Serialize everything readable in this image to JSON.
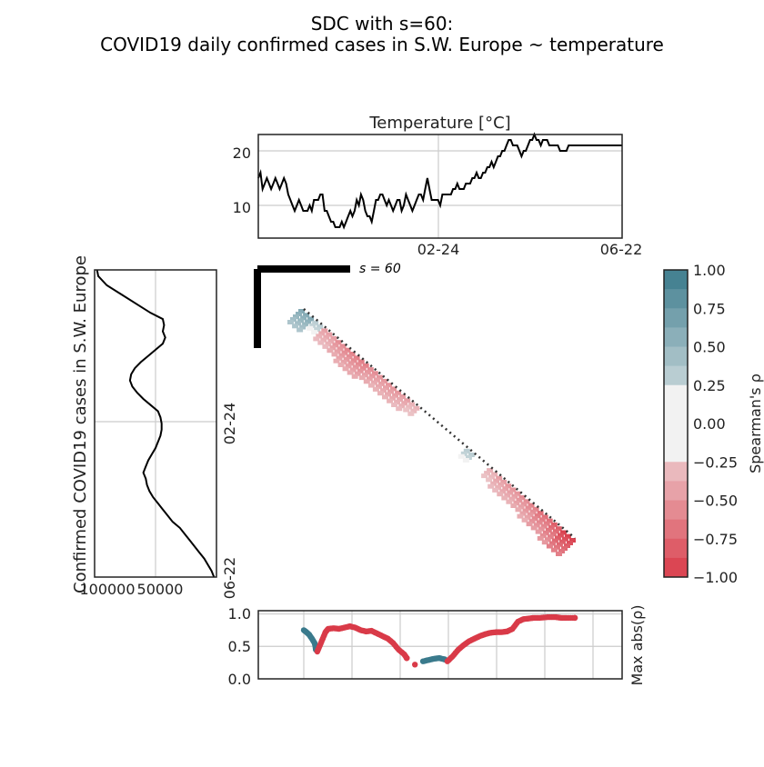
{
  "title_line1": "SDC with s=60:",
  "title_line2": "COVID19 daily confirmed cases in S.W. Europe ~ temperature",
  "colors": {
    "line": "#000000",
    "grid": "#cccccc",
    "positive": "#3a7a8c",
    "negative": "#d93a48",
    "neutral": "#f2f2f2",
    "diagonal": "#333333"
  },
  "chart_data": [
    {
      "type": "line",
      "title": "Temperature [°C]",
      "x_tick_labels": [
        "02-24",
        "06-22"
      ],
      "y_ticks": [
        10,
        20
      ],
      "ylim": [
        4,
        23
      ],
      "grid": true,
      "series": [
        {
          "x_day_index": [
            0,
            2,
            4,
            6,
            8,
            10,
            12,
            14,
            16,
            18,
            20,
            22,
            24,
            26,
            28,
            30,
            32,
            34,
            36,
            38,
            40,
            42,
            44,
            46,
            48,
            50,
            52,
            54,
            56,
            58,
            60,
            62,
            64,
            66,
            68,
            70,
            72,
            74,
            76,
            78,
            80,
            82,
            84,
            86,
            88,
            90,
            92,
            94,
            96,
            98,
            100,
            102,
            104,
            106,
            108,
            110,
            112,
            114,
            116,
            118,
            120,
            122,
            124,
            126,
            128,
            130,
            132,
            134,
            136,
            138,
            140,
            142,
            144,
            146,
            148,
            150,
            152,
            154,
            156,
            158,
            160,
            162,
            164,
            166,
            168,
            170,
            172,
            174,
            176,
            178,
            180,
            182,
            184,
            186,
            188,
            190,
            192,
            194,
            196,
            198,
            200,
            202,
            204,
            206,
            208,
            210,
            212,
            214,
            216,
            218,
            220,
            222,
            224,
            226,
            228,
            230,
            232,
            234,
            236,
            238,
            240,
            242,
            244,
            246,
            248,
            250,
            252,
            254,
            256,
            258,
            260,
            262,
            264,
            266,
            268,
            270,
            272,
            274,
            276,
            278,
            280,
            282,
            284,
            286,
            288,
            290,
            292,
            294,
            296,
            298,
            300,
            302,
            304,
            306,
            308,
            310,
            312,
            314,
            316,
            318,
            320,
            322,
            324,
            326,
            328,
            330,
            332,
            334,
            336,
            338,
            340
          ],
          "values": [
            15,
            16,
            13,
            14,
            15,
            14,
            13,
            14,
            15,
            14,
            13,
            14,
            15,
            14,
            12,
            11,
            10,
            9,
            10,
            11,
            10,
            9,
            9,
            9,
            10,
            9,
            11,
            11,
            11,
            12,
            12,
            9,
            9,
            8,
            7,
            7,
            6,
            6,
            6,
            7,
            6,
            7,
            8,
            9,
            8,
            9,
            11,
            10,
            12,
            11,
            9,
            8,
            8,
            7,
            9,
            11,
            11,
            12,
            12,
            11,
            10,
            11,
            10,
            9,
            10,
            11,
            11,
            9,
            10,
            12,
            11,
            10,
            9,
            10,
            11,
            12,
            12,
            11,
            13,
            15,
            13,
            11,
            11,
            11,
            11,
            10,
            12,
            12,
            12,
            12,
            12,
            13,
            13,
            14,
            13,
            13,
            13,
            14,
            14,
            14,
            15,
            15,
            16,
            15,
            15,
            16,
            16,
            17,
            17,
            18,
            17,
            18,
            19,
            19,
            20,
            20,
            21,
            22,
            22,
            21,
            21,
            21,
            20,
            19,
            20,
            20,
            21,
            22,
            22,
            23,
            22,
            22,
            21,
            22,
            22,
            22,
            21,
            21,
            21,
            21,
            21,
            20,
            20,
            20,
            20,
            21,
            21,
            21,
            21,
            21,
            21,
            21,
            21,
            21,
            21,
            21,
            21,
            21,
            21,
            21,
            21,
            21,
            21,
            21,
            21,
            21,
            21,
            21,
            21,
            21,
            21
          ]
        }
      ]
    },
    {
      "type": "line",
      "orientation": "vertical",
      "ylabel": "Confirmed COVID19 cases in S.W. Europe",
      "x_tick_labels": [
        "100000",
        "50000"
      ],
      "y_tick_labels": [
        "02-24",
        "06-22"
      ],
      "xlim_reversed": [
        100000,
        0
      ],
      "grid": true,
      "series": [
        {
          "t_fraction": [
            0.0,
            0.02,
            0.05,
            0.08,
            0.11,
            0.14,
            0.16,
            0.18,
            0.2,
            0.22,
            0.24,
            0.26,
            0.28,
            0.3,
            0.32,
            0.34,
            0.36,
            0.38,
            0.4,
            0.42,
            0.44,
            0.46,
            0.48,
            0.5,
            0.52,
            0.54,
            0.56,
            0.58,
            0.6,
            0.62,
            0.64,
            0.66,
            0.68,
            0.7,
            0.72,
            0.74,
            0.76,
            0.78,
            0.8,
            0.82,
            0.84,
            0.86,
            0.88,
            0.9,
            0.92,
            0.94,
            0.96,
            0.98,
            1.0
          ],
          "values": [
            98000,
            97000,
            90000,
            78000,
            66000,
            54000,
            44000,
            43000,
            44000,
            42000,
            44000,
            50000,
            56000,
            62000,
            67000,
            70000,
            71000,
            69000,
            65000,
            60000,
            54000,
            48000,
            46000,
            45000,
            45000,
            46000,
            48000,
            50000,
            53000,
            56000,
            58000,
            60000,
            58000,
            57000,
            55000,
            52000,
            48000,
            44000,
            40000,
            36000,
            30000,
            26000,
            22000,
            18000,
            14000,
            10000,
            7000,
            4000,
            2000
          ]
        }
      ]
    },
    {
      "type": "heatmap",
      "annotation": "s = 60",
      "colorbar_label": "Spearman's ρ",
      "colorbar_ticks": [
        "1.00",
        "0.75",
        "0.50",
        "0.25",
        "0.00",
        "−0.25",
        "−0.50",
        "−0.75",
        "−1.00"
      ],
      "band_start_fraction": [
        0.0,
        0.04,
        0.08,
        0.12,
        0.16,
        0.2,
        0.24,
        0.28,
        0.32,
        0.36,
        0.4,
        0.44,
        0.48,
        0.52,
        0.56,
        0.6,
        0.64,
        0.68,
        0.72,
        0.76,
        0.8,
        0.84,
        0.88,
        0.92,
        0.96,
        1.0
      ],
      "band_rho": [
        0.6,
        0.3,
        -0.45,
        -0.55,
        -0.6,
        -0.62,
        -0.55,
        -0.5,
        -0.5,
        -0.45,
        -0.35,
        0.0,
        0.0,
        0.0,
        0.2,
        0.3,
        -0.2,
        -0.35,
        -0.45,
        -0.5,
        -0.55,
        -0.6,
        -0.7,
        -0.8,
        -0.95,
        -0.95
      ]
    },
    {
      "type": "scatter",
      "ylabel": "Max abs(ρ)",
      "y_ticks": [
        "0.0",
        "0.5",
        "1.0"
      ],
      "ylim": [
        0,
        1.05
      ],
      "grid": true,
      "segments": [
        {
          "sign": "positive",
          "points": [
            [
              0.0,
              0.75
            ],
            [
              0.01,
              0.72
            ],
            [
              0.02,
              0.68
            ],
            [
              0.03,
              0.62
            ],
            [
              0.04,
              0.55
            ],
            [
              0.045,
              0.45
            ]
          ]
        },
        {
          "sign": "negative",
          "points": [
            [
              0.05,
              0.42
            ],
            [
              0.06,
              0.52
            ],
            [
              0.07,
              0.62
            ],
            [
              0.08,
              0.72
            ],
            [
              0.09,
              0.77
            ],
            [
              0.11,
              0.78
            ],
            [
              0.13,
              0.77
            ],
            [
              0.15,
              0.79
            ],
            [
              0.17,
              0.81
            ],
            [
              0.19,
              0.79
            ],
            [
              0.21,
              0.75
            ],
            [
              0.23,
              0.73
            ],
            [
              0.25,
              0.74
            ],
            [
              0.27,
              0.7
            ],
            [
              0.29,
              0.66
            ],
            [
              0.31,
              0.62
            ],
            [
              0.33,
              0.55
            ],
            [
              0.35,
              0.45
            ],
            [
              0.37,
              0.38
            ],
            [
              0.38,
              0.32
            ]
          ]
        },
        {
          "sign": "negative",
          "points": [
            [
              0.41,
              0.22
            ]
          ]
        },
        {
          "sign": "positive",
          "points": [
            [
              0.44,
              0.27
            ],
            [
              0.46,
              0.29
            ],
            [
              0.48,
              0.31
            ],
            [
              0.5,
              0.32
            ],
            [
              0.52,
              0.3
            ]
          ]
        },
        {
          "sign": "negative",
          "points": [
            [
              0.53,
              0.27
            ],
            [
              0.55,
              0.35
            ],
            [
              0.57,
              0.45
            ],
            [
              0.59,
              0.52
            ],
            [
              0.61,
              0.58
            ],
            [
              0.63,
              0.62
            ],
            [
              0.65,
              0.66
            ],
            [
              0.67,
              0.69
            ],
            [
              0.69,
              0.71
            ],
            [
              0.71,
              0.72
            ],
            [
              0.73,
              0.72
            ],
            [
              0.75,
              0.73
            ],
            [
              0.77,
              0.77
            ],
            [
              0.79,
              0.88
            ],
            [
              0.81,
              0.92
            ],
            [
              0.83,
              0.93
            ],
            [
              0.85,
              0.94
            ],
            [
              0.87,
              0.94
            ],
            [
              0.9,
              0.95
            ],
            [
              0.93,
              0.95
            ],
            [
              0.95,
              0.94
            ],
            [
              0.97,
              0.94
            ],
            [
              1.0,
              0.94
            ]
          ]
        }
      ]
    }
  ]
}
